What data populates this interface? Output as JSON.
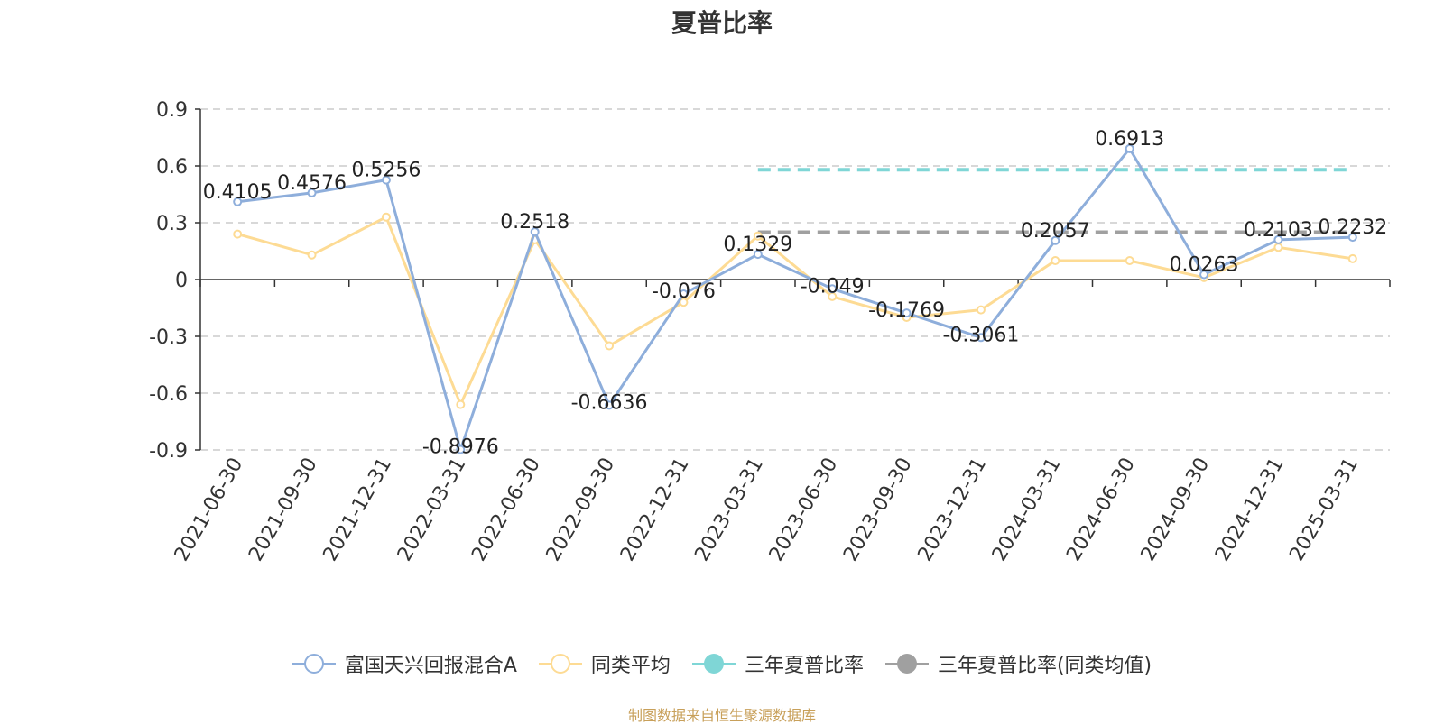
{
  "chart_data": {
    "type": "line",
    "title": "夏普比率",
    "categories": [
      "2021-06-30",
      "2021-09-30",
      "2021-12-31",
      "2022-03-31",
      "2022-06-30",
      "2022-09-30",
      "2022-12-31",
      "2023-03-31",
      "2023-06-30",
      "2023-09-30",
      "2023-12-31",
      "2024-03-31",
      "2024-06-30",
      "2024-09-30",
      "2024-12-31",
      "2025-03-31"
    ],
    "ylim": [
      -0.9,
      0.9
    ],
    "yticks": [
      "0.9",
      "0.6",
      "0.3",
      "0",
      "-0.3",
      "-0.6",
      "-0.9"
    ],
    "grid": true,
    "legend_position": "bottom",
    "series": [
      {
        "name": "富国天兴回报混合A",
        "color": "#8eaedb",
        "values": [
          0.4105,
          0.4576,
          0.5256,
          -0.8976,
          0.2518,
          -0.6636,
          -0.076,
          0.1329,
          -0.049,
          -0.1769,
          -0.3061,
          0.2057,
          0.6913,
          0.0263,
          0.2103,
          0.2232
        ],
        "labels": [
          "0.4105",
          "0.4576",
          "0.5256",
          "-0.8976",
          "0.2518",
          "-0.6636",
          "-0.076",
          "0.1329",
          "-0.049",
          "-0.1769",
          "-0.3061",
          "0.2057",
          "0.6913",
          "0.0263",
          "0.2103",
          "0.2232"
        ]
      },
      {
        "name": "同类平均",
        "color": "#fddb94",
        "values": [
          0.24,
          0.13,
          0.33,
          -0.66,
          0.21,
          -0.35,
          -0.12,
          0.23,
          -0.09,
          -0.2,
          -0.16,
          0.1,
          0.1,
          0.01,
          0.17,
          0.11
        ]
      }
    ],
    "reference_lines": [
      {
        "name": "三年夏普比率",
        "color": "#7fd6d6",
        "value": 0.58,
        "from": "2023-03-31",
        "to": "2025-03-31"
      },
      {
        "name": "三年夏普比率(同类均值)",
        "color": "#a0a0a0",
        "value": 0.25,
        "from": "2023-03-31",
        "to": "2025-03-31"
      }
    ]
  },
  "legend": {
    "item1": "富国天兴回报混合A",
    "item2": "同类平均",
    "item3": "三年夏普比率",
    "item4": "三年夏普比率(同类均值)"
  },
  "footer": "制图数据来自恒生聚源数据库"
}
